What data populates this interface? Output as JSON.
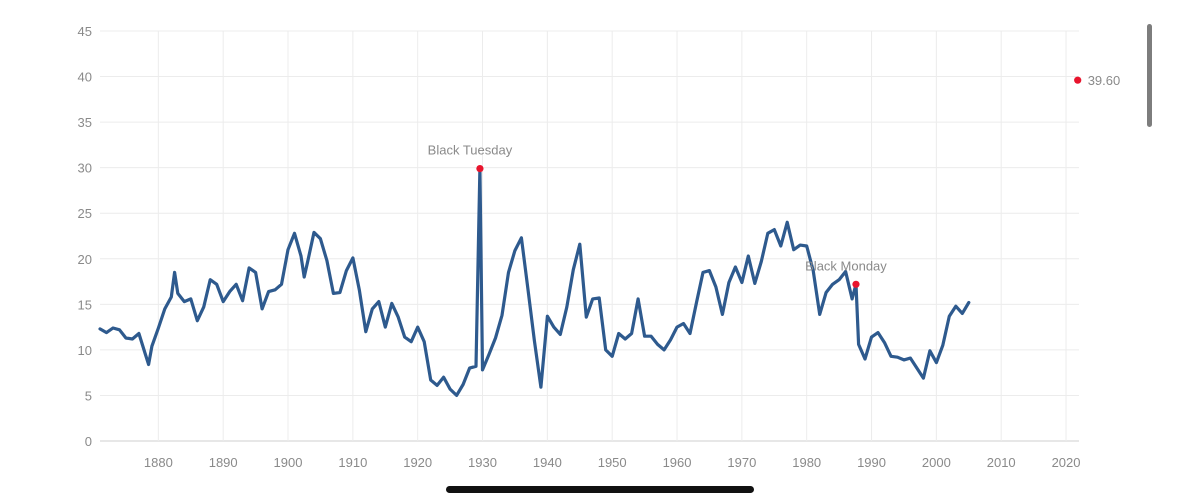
{
  "chart_data": {
    "type": "line",
    "title": "",
    "xlabel": "",
    "ylabel": "",
    "xlim": [
      1871,
      2022
    ],
    "ylim": [
      0,
      45
    ],
    "x_ticks": [
      1880,
      1890,
      1900,
      1910,
      1920,
      1930,
      1940,
      1950,
      1960,
      1970,
      1980,
      1990,
      2000,
      2010,
      2020
    ],
    "x_tick_labels": [
      "1880",
      "1890",
      "1900",
      "1910",
      "1920",
      "1930",
      "1940",
      "1950",
      "1960",
      "1970",
      "1980",
      "1990",
      "2000",
      "2010",
      "2020"
    ],
    "y_ticks": [
      0,
      5,
      10,
      15,
      20,
      25,
      30,
      35,
      40,
      45
    ],
    "y_tick_labels": [
      "0",
      "5",
      "10",
      "15",
      "20",
      "25",
      "30",
      "35",
      "40",
      "45"
    ],
    "grid": true,
    "series": [
      {
        "color": "#2e5a8e",
        "points": [
          [
            1871,
            12.3
          ],
          [
            1872,
            11.9
          ],
          [
            1873,
            12.4
          ],
          [
            1874,
            12.2
          ],
          [
            1875,
            11.3
          ],
          [
            1876,
            11.2
          ],
          [
            1877,
            11.8
          ],
          [
            1878,
            9.5
          ],
          [
            1878.5,
            8.4
          ],
          [
            1879,
            10.4
          ],
          [
            1880,
            12.4
          ],
          [
            1881,
            14.5
          ],
          [
            1882,
            15.8
          ],
          [
            1882.5,
            18.5
          ],
          [
            1883,
            16.2
          ],
          [
            1884,
            15.3
          ],
          [
            1885,
            15.6
          ],
          [
            1886,
            13.2
          ],
          [
            1887,
            14.7
          ],
          [
            1888,
            17.7
          ],
          [
            1889,
            17.2
          ],
          [
            1890,
            15.3
          ],
          [
            1891,
            16.4
          ],
          [
            1892,
            17.2
          ],
          [
            1893,
            15.4
          ],
          [
            1894,
            19.0
          ],
          [
            1895,
            18.5
          ],
          [
            1896,
            14.5
          ],
          [
            1897,
            16.4
          ],
          [
            1898,
            16.6
          ],
          [
            1899,
            17.2
          ],
          [
            1900,
            21.0
          ],
          [
            1901,
            22.8
          ],
          [
            1902,
            20.3
          ],
          [
            1902.5,
            18.0
          ],
          [
            1903,
            19.6
          ],
          [
            1904,
            22.9
          ],
          [
            1905,
            22.2
          ],
          [
            1906,
            19.8
          ],
          [
            1907,
            16.2
          ],
          [
            1908,
            16.3
          ],
          [
            1909,
            18.7
          ],
          [
            1910,
            20.1
          ],
          [
            1911,
            16.6
          ],
          [
            1912,
            12.0
          ],
          [
            1913,
            14.5
          ],
          [
            1914,
            15.3
          ],
          [
            1915,
            12.5
          ],
          [
            1916,
            15.1
          ],
          [
            1917,
            13.6
          ],
          [
            1918,
            11.4
          ],
          [
            1919,
            10.9
          ],
          [
            1920,
            12.5
          ],
          [
            1921,
            10.9
          ],
          [
            1922,
            6.7
          ],
          [
            1923,
            6.1
          ],
          [
            1924,
            7.0
          ],
          [
            1925,
            5.7
          ],
          [
            1926,
            5.0
          ],
          [
            1927,
            6.2
          ],
          [
            1928,
            8.0
          ],
          [
            1929,
            8.2
          ],
          [
            1930,
            7.8
          ],
          [
            1931,
            9.5
          ],
          [
            1932,
            11.3
          ],
          [
            1933,
            13.8
          ],
          [
            1934,
            18.5
          ],
          [
            1935,
            20.9
          ],
          [
            1929.6,
            29.9
          ],
          [
            1936,
            22.3
          ],
          [
            1937,
            16.7
          ],
          [
            1938,
            11.0
          ],
          [
            1939,
            5.9
          ],
          [
            1940,
            13.7
          ],
          [
            1941,
            12.5
          ],
          [
            1942,
            11.7
          ],
          [
            1943,
            14.7
          ],
          [
            1944,
            18.8
          ],
          [
            1945,
            21.6
          ],
          [
            1946,
            13.6
          ],
          [
            1947,
            15.6
          ],
          [
            1948,
            15.7
          ],
          [
            1949,
            10.0
          ],
          [
            1950,
            9.3
          ],
          [
            1951,
            11.8
          ],
          [
            1952,
            11.2
          ],
          [
            1953,
            11.8
          ],
          [
            1954,
            15.6
          ],
          [
            1955,
            11.5
          ],
          [
            1956,
            11.5
          ],
          [
            1957,
            10.6
          ],
          [
            1958,
            10.0
          ],
          [
            1959,
            11.1
          ],
          [
            1960,
            12.5
          ],
          [
            1961,
            12.9
          ],
          [
            1962,
            11.8
          ],
          [
            1963,
            15.2
          ],
          [
            1964,
            18.5
          ],
          [
            1965,
            18.7
          ],
          [
            1966,
            16.9
          ],
          [
            1967,
            13.9
          ],
          [
            1968,
            17.4
          ],
          [
            1969,
            19.1
          ],
          [
            1970,
            17.4
          ],
          [
            1971,
            20.3
          ],
          [
            1972,
            17.3
          ],
          [
            1973,
            19.7
          ],
          [
            1974,
            22.8
          ],
          [
            1975,
            23.2
          ],
          [
            1976,
            21.4
          ],
          [
            1977,
            24.0
          ],
          [
            1978,
            21.0
          ],
          [
            1979,
            21.5
          ],
          [
            1980,
            21.4
          ],
          [
            1981,
            18.7
          ],
          [
            1982,
            13.9
          ],
          [
            1983,
            16.3
          ],
          [
            1984,
            17.2
          ],
          [
            1985,
            17.7
          ],
          [
            1986,
            18.6
          ],
          [
            1987,
            15.6
          ],
          [
            1988,
            10.6
          ],
          [
            1989,
            9.0
          ],
          [
            1990,
            11.4
          ],
          [
            1991,
            11.9
          ],
          [
            1992,
            10.8
          ],
          [
            1993,
            9.3
          ],
          [
            1994,
            9.2
          ],
          [
            1995,
            8.9
          ],
          [
            1996,
            9.1
          ],
          [
            1997,
            8.0
          ],
          [
            1998,
            6.9
          ],
          [
            1999,
            9.9
          ],
          [
            2000,
            8.6
          ],
          [
            2001,
            10.5
          ],
          [
            2002,
            13.7
          ],
          [
            2003,
            14.8
          ],
          [
            1987.6,
            17.2
          ],
          [
            2004,
            14.0
          ],
          [
            2005,
            15.2
          ]
        ]
      }
    ],
    "annotations": [
      {
        "label": "Black Tuesday",
        "x": 1929.6,
        "y": 29.9,
        "color": "#e8142d"
      },
      {
        "label": "Black Monday",
        "x": 1987.6,
        "y": 17.2,
        "color": "#e8142d"
      },
      {
        "label": "39.60",
        "x": 2021.8,
        "y": 39.6,
        "color": "#e8142d"
      }
    ]
  }
}
